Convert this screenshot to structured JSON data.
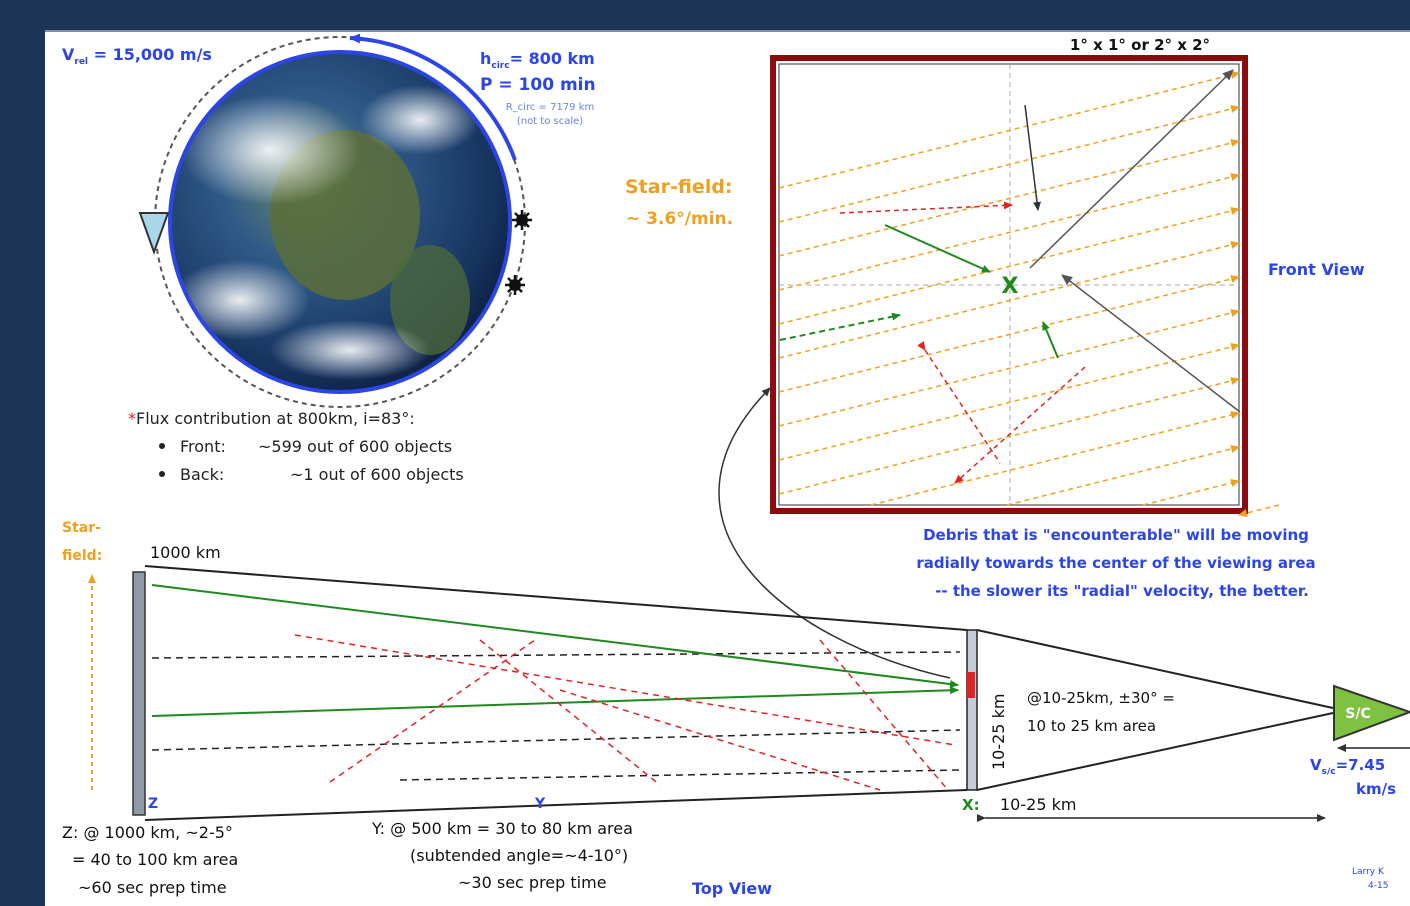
{
  "orbit": {
    "vrel": "V",
    "vrel_sub": "rel",
    "vrel_value": " = 15,000 m/s",
    "h_label": "h",
    "h_sub": "circ",
    "h_value": "= 800 km",
    "period": "P = 100 min",
    "r_circ": "R_circ = 7179 km",
    "scale_note": "(not to scale)"
  },
  "flux": {
    "asterisk": "*",
    "title": "Flux contribution at 800km, i=83°:",
    "front_label": "Front:",
    "front_value": "~599 out of 600 objects",
    "back_label": "Back:",
    "back_value": "~1 out of 600 objects"
  },
  "front_view": {
    "size_label": "1° x 1° or 2° x 2°",
    "star_field_title": "Star-field:",
    "star_field_rate": "~ 3.6°/min.",
    "view_label": "Front View",
    "center_mark": "X",
    "note_lines": [
      "Debris that is \"encounterable\" will be moving",
      "radially towards the center of the viewing area",
      "-- the slower its \"radial\" velocity, the better."
    ]
  },
  "top_view": {
    "star_label_1": "Star-",
    "star_label_2": "field:",
    "range_1000": "1000 km",
    "z_marker": "Z",
    "y_marker": "Y",
    "x_marker": "X:",
    "x_range": "10-25 km",
    "vertical_range": "10-25 km",
    "near_area_1": "@10-25km, ±30° =",
    "near_area_2": "10 to 25 km area",
    "z_text": [
      "Z: @ 1000 km, ~2-5°",
      "= 40 to 100 km area",
      "~60 sec prep time"
    ],
    "y_text": [
      "Y: @ 500 km = 30 to 80 km area",
      "(subtended angle=~4-10°)",
      "~30 sec prep time"
    ],
    "view_label": "Top View",
    "sc_label": "S/C",
    "vsc": "V",
    "vsc_sub": "s/c",
    "vsc_value": "=7.45",
    "vsc_units": "km/s",
    "credit_1": "Larry K",
    "credit_2": "4-15"
  },
  "colors": {
    "background": "#1d3658",
    "label_blue": "#2b45e6",
    "star_orange": "#f0a020",
    "debris_green": "#1e8a1e",
    "debris_red": "#e32222",
    "frame_red": "#a01010",
    "sc_green": "#7fc242"
  }
}
